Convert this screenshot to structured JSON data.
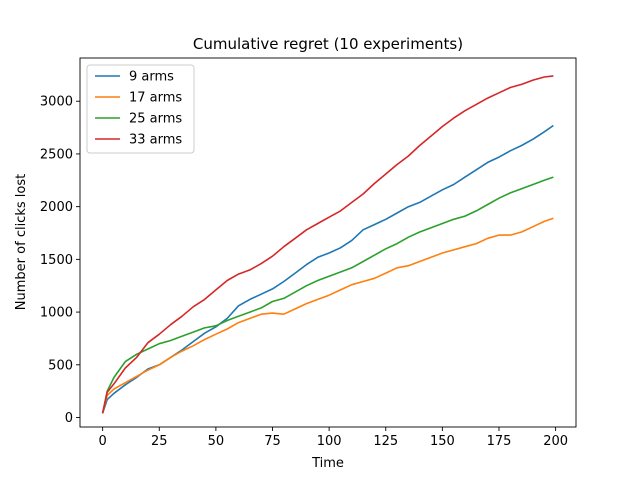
{
  "chart_data": {
    "type": "line",
    "title": "Cumulative regret (10 experiments)",
    "xlabel": "Time",
    "ylabel": "Number of clicks lost",
    "xlim": [
      -10,
      209
    ],
    "ylim": [
      -90,
      3410
    ],
    "xticks": [
      0,
      25,
      50,
      75,
      100,
      125,
      150,
      175,
      200
    ],
    "yticks": [
      0,
      500,
      1000,
      1500,
      2000,
      2500,
      3000
    ],
    "grid": false,
    "legend_position": "top-left",
    "x": [
      0,
      2,
      5,
      10,
      15,
      20,
      25,
      30,
      35,
      40,
      45,
      50,
      55,
      60,
      65,
      70,
      75,
      80,
      85,
      90,
      95,
      100,
      105,
      110,
      115,
      120,
      125,
      130,
      135,
      140,
      145,
      150,
      155,
      160,
      165,
      170,
      175,
      180,
      185,
      190,
      195,
      199
    ],
    "series": [
      {
        "name": "9 arms",
        "color": "#1f77b4",
        "values": [
          40,
          170,
          230,
          310,
          380,
          460,
          500,
          570,
          640,
          720,
          800,
          860,
          940,
          1060,
          1120,
          1170,
          1220,
          1290,
          1370,
          1450,
          1520,
          1560,
          1610,
          1680,
          1780,
          1830,
          1880,
          1940,
          2000,
          2040,
          2100,
          2160,
          2210,
          2280,
          2350,
          2420,
          2470,
          2530,
          2580,
          2640,
          2710,
          2770
        ]
      },
      {
        "name": "17 arms",
        "color": "#ff7f0e",
        "values": [
          40,
          210,
          270,
          330,
          390,
          450,
          500,
          570,
          630,
          680,
          740,
          790,
          840,
          900,
          940,
          980,
          990,
          980,
          1030,
          1080,
          1120,
          1160,
          1210,
          1260,
          1290,
          1320,
          1370,
          1420,
          1440,
          1480,
          1520,
          1560,
          1590,
          1620,
          1650,
          1700,
          1730,
          1730,
          1760,
          1810,
          1860,
          1890
        ]
      },
      {
        "name": "25 arms",
        "color": "#2ca02c",
        "values": [
          40,
          250,
          380,
          530,
          600,
          650,
          700,
          730,
          770,
          810,
          850,
          870,
          920,
          960,
          1000,
          1040,
          1100,
          1130,
          1190,
          1250,
          1300,
          1340,
          1380,
          1420,
          1480,
          1540,
          1600,
          1650,
          1710,
          1760,
          1800,
          1840,
          1880,
          1910,
          1960,
          2020,
          2080,
          2130,
          2170,
          2210,
          2250,
          2280
        ]
      },
      {
        "name": "33 arms",
        "color": "#d62728",
        "values": [
          40,
          240,
          320,
          470,
          570,
          710,
          790,
          880,
          960,
          1050,
          1120,
          1210,
          1300,
          1360,
          1400,
          1460,
          1530,
          1620,
          1700,
          1780,
          1840,
          1900,
          1960,
          2040,
          2120,
          2220,
          2310,
          2400,
          2480,
          2580,
          2670,
          2760,
          2840,
          2910,
          2970,
          3030,
          3080,
          3130,
          3160,
          3200,
          3230,
          3240
        ]
      }
    ]
  }
}
